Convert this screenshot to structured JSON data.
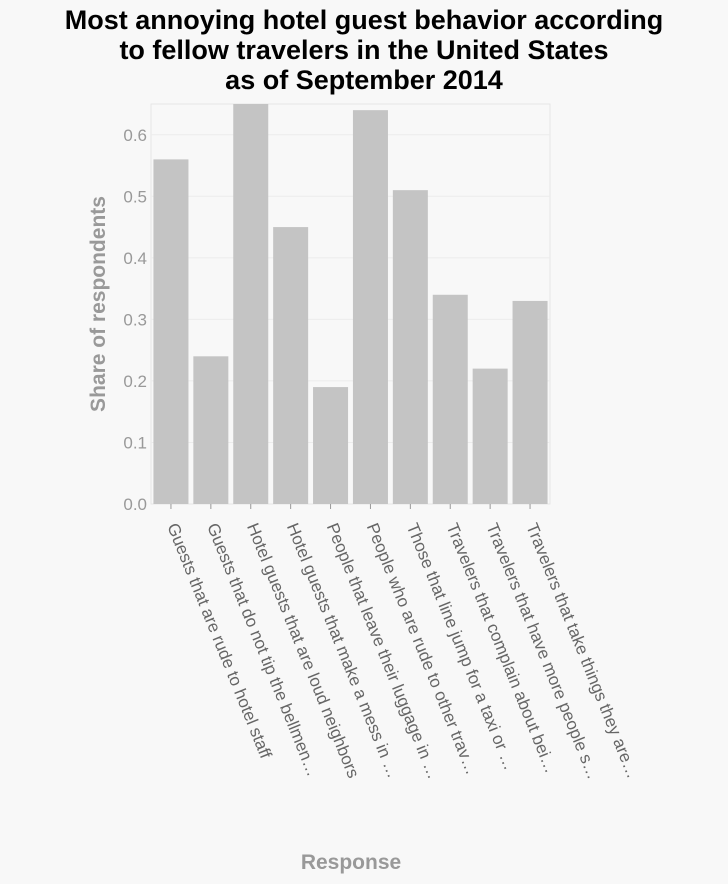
{
  "chart_data": {
    "type": "bar",
    "title_lines": [
      "Most annoying hotel guest behavior according",
      "to fellow travelers in the United States",
      "as of September 2014"
    ],
    "xlabel": "Response",
    "ylabel": "Share of respondents",
    "ylim": [
      0,
      0.65
    ],
    "yticks": [
      "0.0",
      "0.1",
      "0.2",
      "0.3",
      "0.4",
      "0.5",
      "0.6"
    ],
    "categories": [
      "Guests that are rude to hotel staff",
      "Guests that do not tip the bellmen…",
      "Hotel guests that are loud neighbors",
      "Hotel guests that make a mess in …",
      "People that leave their luggage in …",
      "People who are rude to other trav…",
      "Those that line jump for a taxi or …",
      "Travelers that complain about bei…",
      "Travelers that have more people s…",
      "Travelers that take things they are…"
    ],
    "values": [
      0.56,
      0.24,
      0.65,
      0.45,
      0.19,
      0.64,
      0.51,
      0.34,
      0.22,
      0.33
    ],
    "bar_color": "#c4c4c4",
    "grid": true,
    "legend": "none"
  }
}
